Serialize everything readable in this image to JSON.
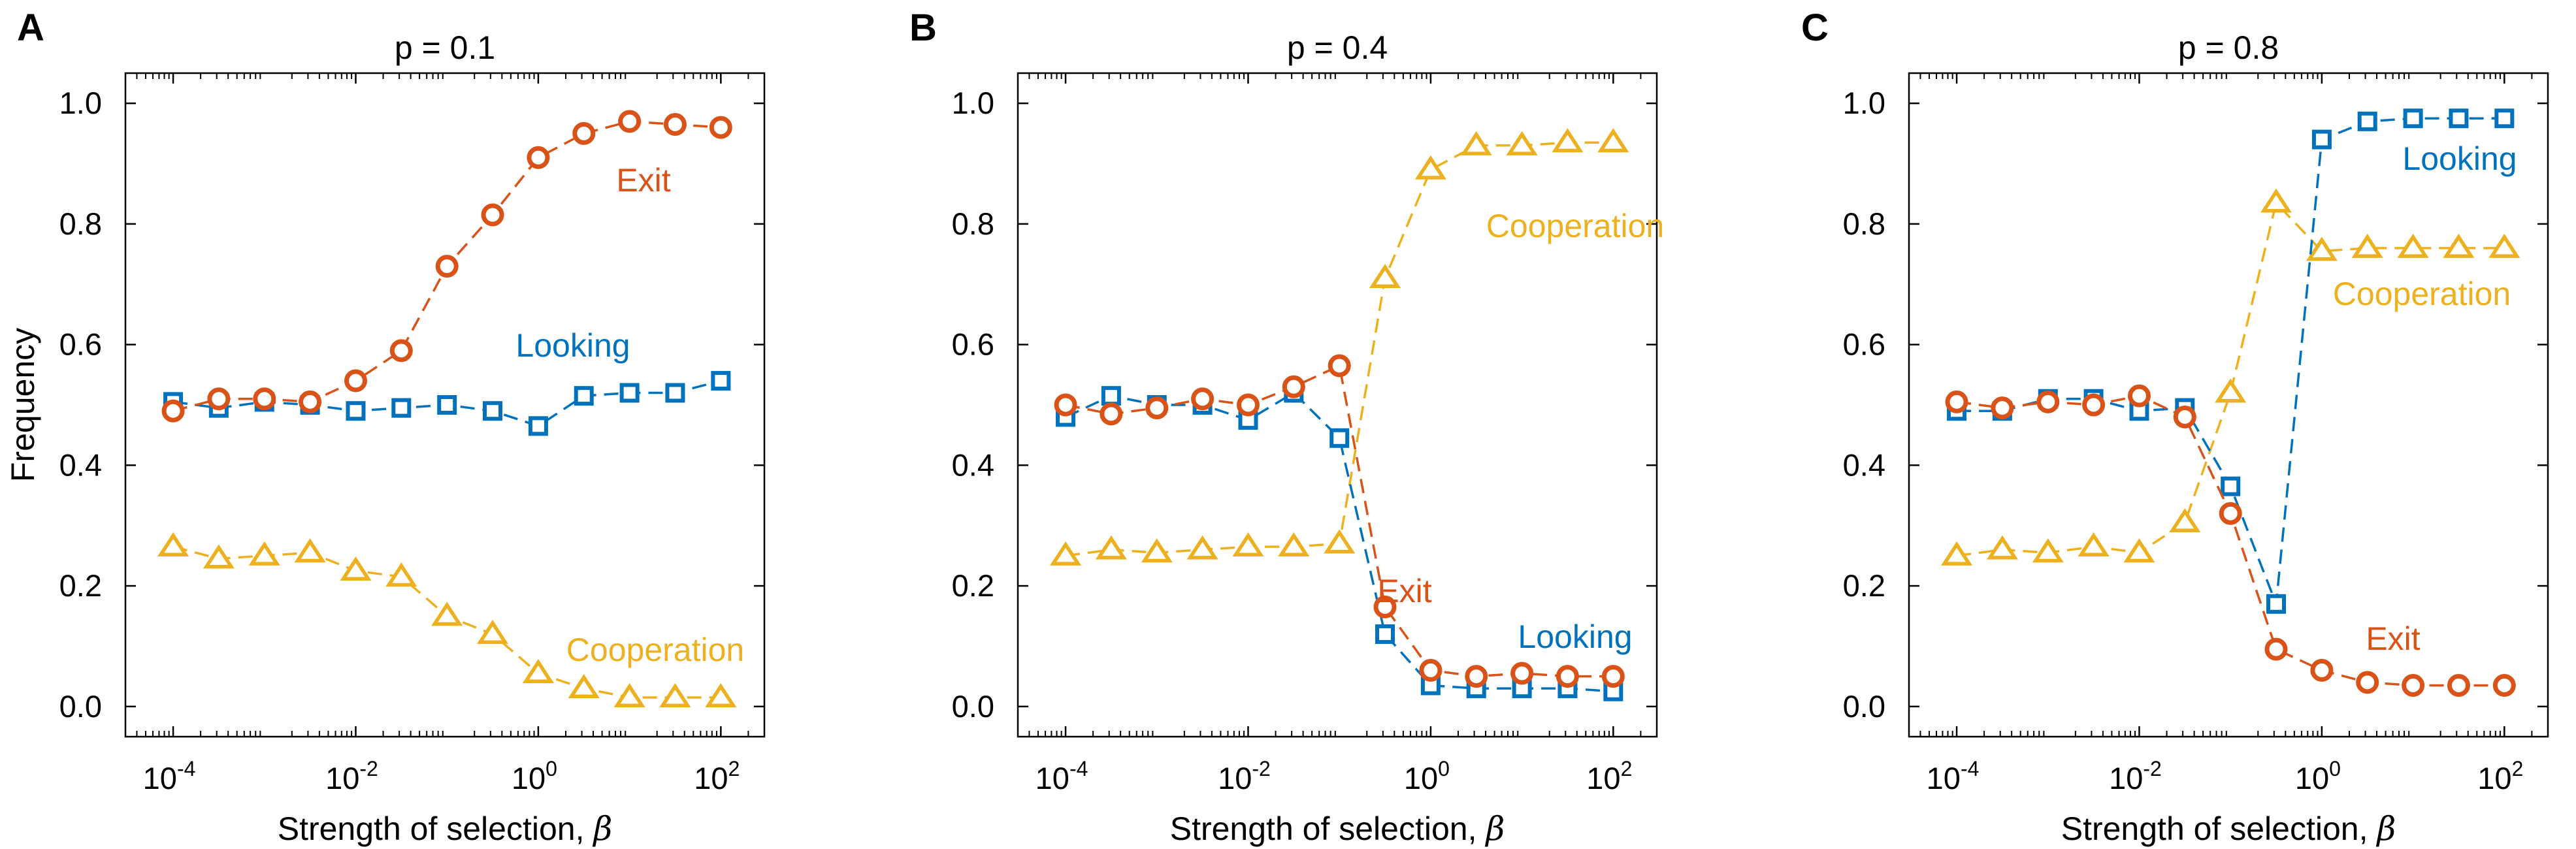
{
  "figure": {
    "colors": {
      "exit": "#d95319",
      "looking": "#0072bd",
      "cooperation": "#edb120",
      "axis": "#000000"
    },
    "icons": {
      "exit": "circle-marker",
      "looking": "square-marker",
      "cooperation": "triangle-marker"
    }
  },
  "chart_data": [
    {
      "type": "line",
      "panel": "A",
      "title": "p = 0.1",
      "xlabel": "Strength of selection, ",
      "xlabel_symbol": "β",
      "ylabel": "Frequency",
      "xscale": "log",
      "xlim": [
        3e-05,
        300
      ],
      "ylim": [
        -0.05,
        1.05
      ],
      "xticks": [
        {
          "base": "10",
          "exp": "-4"
        },
        {
          "base": "10",
          "exp": "-2"
        },
        {
          "base": "10",
          "exp": "0"
        },
        {
          "base": "10",
          "exp": "2"
        }
      ],
      "yticks": [
        "0.0",
        "0.2",
        "0.4",
        "0.6",
        "0.8",
        "1.0"
      ],
      "x": [
        0.0001,
        0.000316,
        0.001,
        0.00316,
        0.01,
        0.0316,
        0.1,
        0.316,
        1,
        3.16,
        10,
        31.6,
        100
      ],
      "series": [
        {
          "name": "Exit",
          "key": "exit",
          "values": [
            0.49,
            0.51,
            0.51,
            0.505,
            0.54,
            0.59,
            0.73,
            0.815,
            0.91,
            0.95,
            0.97,
            0.965,
            0.96
          ]
        },
        {
          "name": "Looking",
          "key": "looking",
          "values": [
            0.505,
            0.495,
            0.505,
            0.5,
            0.49,
            0.495,
            0.5,
            0.49,
            0.465,
            0.515,
            0.52,
            0.52,
            0.54
          ]
        },
        {
          "name": "Cooperation",
          "key": "cooperation",
          "values": [
            0.265,
            0.245,
            0.25,
            0.255,
            0.225,
            0.215,
            0.15,
            0.12,
            0.055,
            0.03,
            0.015,
            0.015,
            0.015
          ]
        }
      ],
      "annotations": [
        {
          "text": "Exit",
          "series": "exit",
          "position": "below the Exit curve, right"
        },
        {
          "text": "Looking",
          "series": "looking",
          "position": "above the Looking curve, middle"
        },
        {
          "text": "Cooperation",
          "series": "cooperation",
          "position": "above the Cooperation curve, right"
        }
      ]
    },
    {
      "type": "line",
      "panel": "B",
      "title": "p = 0.4",
      "xlabel": "Strength of selection, ",
      "xlabel_symbol": "β",
      "ylabel": "",
      "xscale": "log",
      "xlim": [
        3e-05,
        300
      ],
      "ylim": [
        -0.05,
        1.05
      ],
      "xticks": [
        {
          "base": "10",
          "exp": "-4"
        },
        {
          "base": "10",
          "exp": "-2"
        },
        {
          "base": "10",
          "exp": "0"
        },
        {
          "base": "10",
          "exp": "2"
        }
      ],
      "yticks": [
        "0.0",
        "0.2",
        "0.4",
        "0.6",
        "0.8",
        "1.0"
      ],
      "x": [
        0.0001,
        0.000316,
        0.001,
        0.00316,
        0.01,
        0.0316,
        0.1,
        0.316,
        1,
        3.16,
        10,
        31.6,
        100
      ],
      "series": [
        {
          "name": "Exit",
          "key": "exit",
          "values": [
            0.5,
            0.485,
            0.495,
            0.51,
            0.5,
            0.53,
            0.565,
            0.165,
            0.06,
            0.05,
            0.055,
            0.05,
            0.05
          ]
        },
        {
          "name": "Looking",
          "key": "looking",
          "values": [
            0.48,
            0.515,
            0.5,
            0.5,
            0.475,
            0.52,
            0.445,
            0.12,
            0.035,
            0.03,
            0.03,
            0.03,
            0.025
          ]
        },
        {
          "name": "Cooperation",
          "key": "cooperation",
          "values": [
            0.25,
            0.26,
            0.255,
            0.26,
            0.265,
            0.265,
            0.27,
            0.71,
            0.89,
            0.93,
            0.93,
            0.935,
            0.935
          ]
        }
      ],
      "annotations": [
        {
          "text": "Cooperation",
          "series": "cooperation",
          "position": "below the Cooperation curve, right"
        },
        {
          "text": "Exit",
          "series": "exit",
          "position": "beside the Exit drop, middle"
        },
        {
          "text": "Looking",
          "series": "looking",
          "position": "above the Looking curve, right"
        }
      ]
    },
    {
      "type": "line",
      "panel": "C",
      "title": "p = 0.8",
      "xlabel": "Strength of selection, ",
      "xlabel_symbol": "β",
      "ylabel": "",
      "xscale": "log",
      "xlim": [
        3e-05,
        300
      ],
      "ylim": [
        -0.05,
        1.05
      ],
      "xticks": [
        {
          "base": "10",
          "exp": "-4"
        },
        {
          "base": "10",
          "exp": "-2"
        },
        {
          "base": "10",
          "exp": "0"
        },
        {
          "base": "10",
          "exp": "2"
        }
      ],
      "yticks": [
        "0.0",
        "0.2",
        "0.4",
        "0.6",
        "0.8",
        "1.0"
      ],
      "x": [
        0.0001,
        0.000316,
        0.001,
        0.00316,
        0.01,
        0.0316,
        0.1,
        0.316,
        1,
        3.16,
        10,
        31.6,
        100
      ],
      "series": [
        {
          "name": "Exit",
          "key": "exit",
          "values": [
            0.505,
            0.495,
            0.505,
            0.5,
            0.515,
            0.48,
            0.32,
            0.095,
            0.06,
            0.04,
            0.035,
            0.035,
            0.035
          ]
        },
        {
          "name": "Looking",
          "key": "looking",
          "values": [
            0.49,
            0.49,
            0.51,
            0.51,
            0.49,
            0.495,
            0.365,
            0.17,
            0.94,
            0.97,
            0.975,
            0.975,
            0.975
          ]
        },
        {
          "name": "Cooperation",
          "key": "cooperation",
          "values": [
            0.25,
            0.26,
            0.255,
            0.265,
            0.255,
            0.305,
            0.52,
            0.835,
            0.755,
            0.76,
            0.76,
            0.76,
            0.76
          ]
        }
      ],
      "annotations": [
        {
          "text": "Looking",
          "series": "looking",
          "position": "below the Looking curve, right"
        },
        {
          "text": "Cooperation",
          "series": "cooperation",
          "position": "below the Cooperation curve, right"
        },
        {
          "text": "Exit",
          "series": "exit",
          "position": "above the Exit curve, middle"
        }
      ]
    }
  ]
}
